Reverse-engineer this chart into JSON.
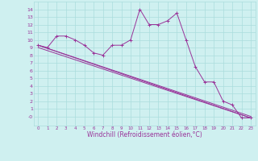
{
  "xlabel": "Windchill (Refroidissement éolien,°C)",
  "background_color": "#cff0f0",
  "line_color": "#993399",
  "xlim": [
    -0.5,
    23.5
  ],
  "ylim": [
    -1.2,
    15.0
  ],
  "xticks": [
    0,
    1,
    2,
    3,
    4,
    5,
    6,
    7,
    8,
    9,
    10,
    11,
    12,
    13,
    14,
    15,
    16,
    17,
    18,
    19,
    20,
    21,
    22,
    23
  ],
  "yticks": [
    0,
    1,
    2,
    3,
    4,
    5,
    6,
    7,
    8,
    9,
    10,
    11,
    12,
    13,
    14
  ],
  "ytick_labels": [
    "-0",
    "1",
    "2",
    "3",
    "4",
    "5",
    "6",
    "7",
    "8",
    "9",
    "10",
    "11",
    "12",
    "13",
    "14"
  ],
  "series1_x": [
    0,
    1,
    2,
    3,
    4,
    5,
    6,
    7,
    8,
    9,
    10,
    11,
    12,
    13,
    14,
    15,
    16,
    17,
    18,
    19,
    20,
    21,
    22,
    23
  ],
  "series1_y": [
    9.3,
    9.0,
    10.5,
    10.5,
    10.0,
    9.3,
    8.3,
    8.0,
    9.3,
    9.3,
    10.0,
    14.0,
    12.0,
    12.0,
    12.5,
    13.5,
    10.0,
    6.5,
    4.5,
    4.5,
    2.0,
    1.5,
    -0.2,
    -0.2
  ],
  "trend1_x": [
    0,
    23
  ],
  "trend1_y": [
    9.3,
    -0.2
  ],
  "trend2_x": [
    0,
    23
  ],
  "trend2_y": [
    9.0,
    -0.2
  ],
  "trend3_x": [
    0,
    23
  ],
  "trend3_y": [
    9.3,
    0.0
  ],
  "grid_color": "#aadddd",
  "marker": "+"
}
